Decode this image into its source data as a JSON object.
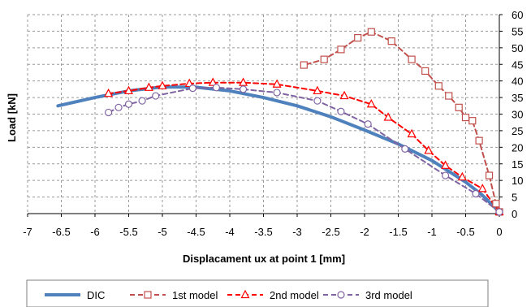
{
  "chart_data": {
    "type": "line",
    "xlabel": "Displacament ux at point 1 [mm]",
    "ylabel": "Load [kN]",
    "xlim": [
      -7,
      0
    ],
    "ylim": [
      0,
      60
    ],
    "x_ticks": [
      "-7",
      "-6.5",
      "-6",
      "-5.5",
      "-5",
      "-4.5",
      "-4",
      "-3.5",
      "-3",
      "-2.5",
      "-2",
      "-1.5",
      "-1",
      "-0.5",
      "0"
    ],
    "y_ticks": [
      "0",
      "5",
      "10",
      "15",
      "20",
      "25",
      "30",
      "35",
      "40",
      "45",
      "50",
      "55",
      "60"
    ],
    "grid": true,
    "y_axis_side": "right",
    "legend_position": "bottom",
    "series": [
      {
        "name": "DIC",
        "color": "#4f81bd",
        "style": "solid",
        "marker": "none",
        "points": [
          [
            -6.55,
            32.5
          ],
          [
            -6.0,
            35.0
          ],
          [
            -5.5,
            37.0
          ],
          [
            -5.0,
            38.2
          ],
          [
            -4.5,
            38.1
          ],
          [
            -4.0,
            37.0
          ],
          [
            -3.5,
            35.0
          ],
          [
            -3.0,
            32.5
          ],
          [
            -2.5,
            29.2
          ],
          [
            -2.0,
            25.2
          ],
          [
            -1.5,
            21.0
          ],
          [
            -1.0,
            16.0
          ],
          [
            -0.5,
            9.5
          ],
          [
            -0.25,
            5.5
          ],
          [
            0.0,
            0.5
          ]
        ]
      },
      {
        "name": "1st model",
        "color": "#c0504d",
        "style": "dashed",
        "marker": "square",
        "points": [
          [
            0.0,
            0.5
          ],
          [
            -0.05,
            3.0
          ],
          [
            -0.15,
            11.5
          ],
          [
            -0.3,
            22.0
          ],
          [
            -0.4,
            28.0
          ],
          [
            -0.5,
            29.0
          ],
          [
            -0.6,
            32.0
          ],
          [
            -0.75,
            35.5
          ],
          [
            -0.9,
            38.5
          ],
          [
            -1.1,
            43.0
          ],
          [
            -1.3,
            46.5
          ],
          [
            -1.6,
            52.0
          ],
          [
            -1.9,
            54.8
          ],
          [
            -2.1,
            53.0
          ],
          [
            -2.35,
            49.5
          ],
          [
            -2.6,
            46.5
          ],
          [
            -2.9,
            44.8
          ]
        ]
      },
      {
        "name": "2nd model",
        "color": "#ff0000",
        "style": "dashed",
        "marker": "triangle",
        "points": [
          [
            0.0,
            0.5
          ],
          [
            -0.25,
            7.5
          ],
          [
            -0.55,
            11.0
          ],
          [
            -0.8,
            14.5
          ],
          [
            -1.05,
            19.0
          ],
          [
            -1.3,
            24.0
          ],
          [
            -1.65,
            29.0
          ],
          [
            -1.9,
            33.0
          ],
          [
            -2.3,
            35.5
          ],
          [
            -2.7,
            37.0
          ],
          [
            -3.3,
            39.0
          ],
          [
            -3.8,
            39.5
          ],
          [
            -4.25,
            39.5
          ],
          [
            -4.6,
            39.2
          ],
          [
            -5.0,
            38.5
          ],
          [
            -5.2,
            38.0
          ],
          [
            -5.5,
            37.0
          ],
          [
            -5.8,
            36.2
          ]
        ]
      },
      {
        "name": "3rd model",
        "color": "#8064a2",
        "style": "dashed",
        "marker": "circle",
        "points": [
          [
            0.0,
            0.5
          ],
          [
            -0.35,
            6.0
          ],
          [
            -0.8,
            11.5
          ],
          [
            -1.4,
            19.5
          ],
          [
            -1.95,
            27.0
          ],
          [
            -2.35,
            30.8
          ],
          [
            -2.7,
            34.0
          ],
          [
            -3.3,
            36.5
          ],
          [
            -3.8,
            37.5
          ],
          [
            -4.2,
            38.0
          ],
          [
            -4.55,
            37.8
          ],
          [
            -5.1,
            35.5
          ],
          [
            -5.3,
            34.0
          ],
          [
            -5.5,
            33.0
          ],
          [
            -5.65,
            32.0
          ],
          [
            -5.8,
            30.5
          ]
        ]
      }
    ]
  }
}
